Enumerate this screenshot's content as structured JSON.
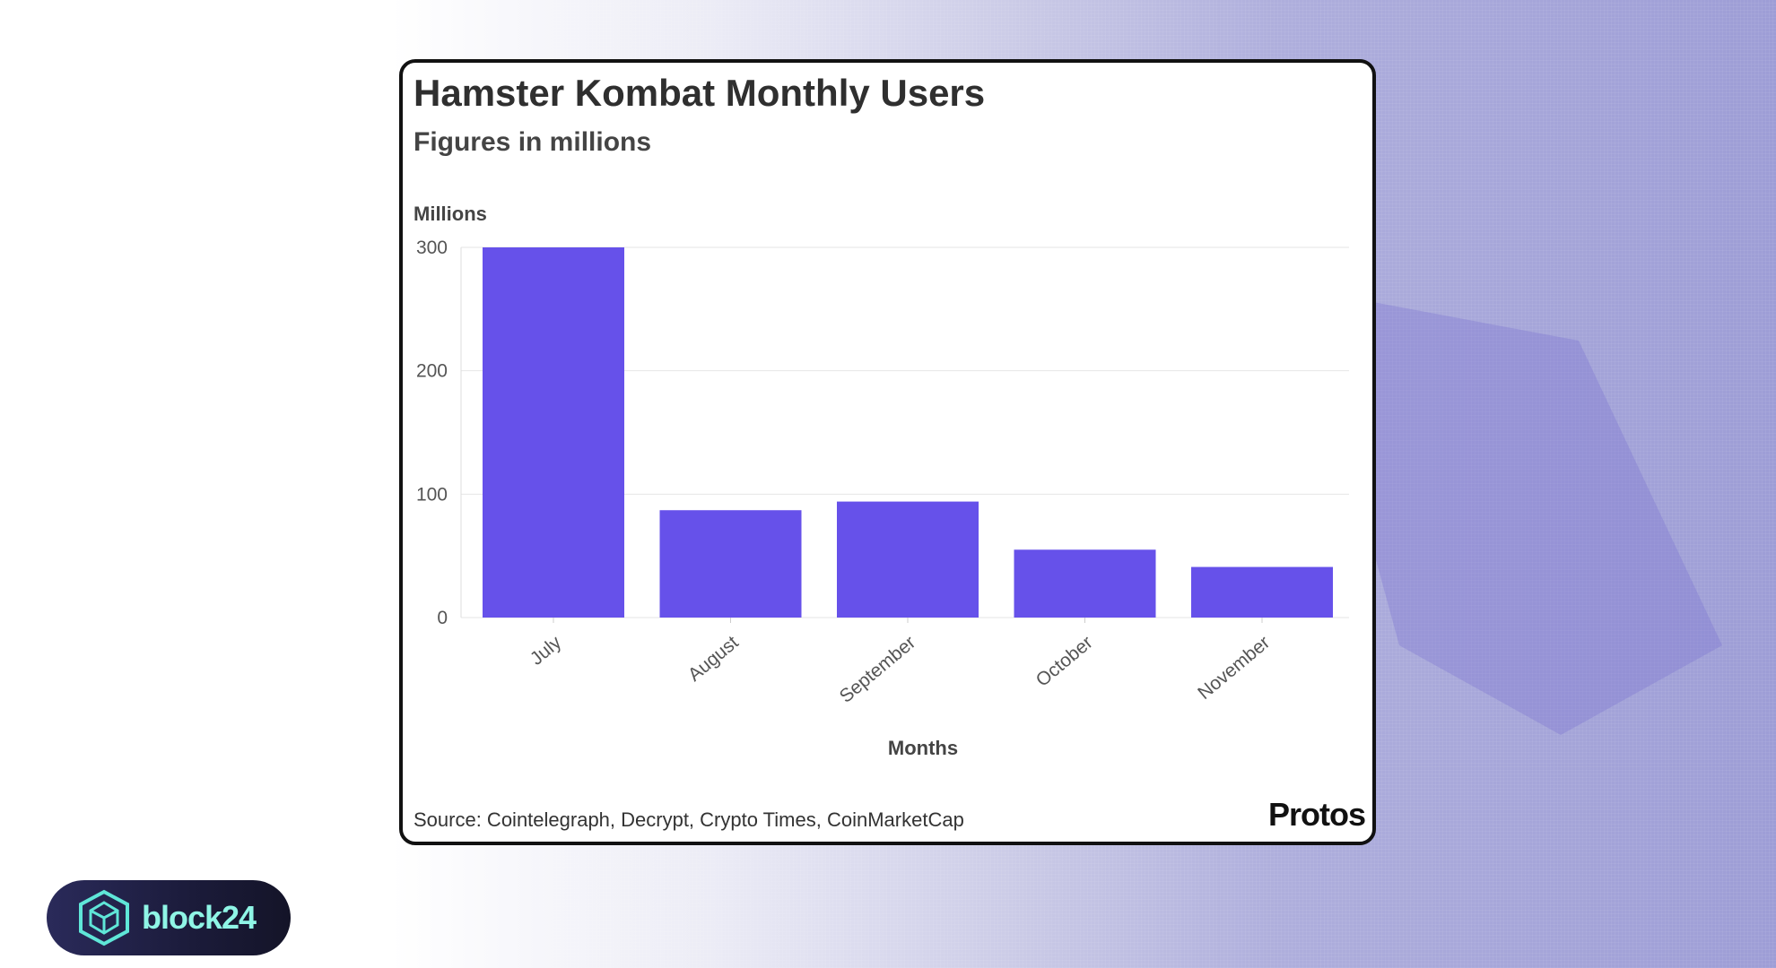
{
  "chart_data": {
    "type": "bar",
    "title": "Hamster Kombat Monthly Users",
    "subtitle": "Figures in millions",
    "xlabel": "Months",
    "ylabel": "Millions",
    "categories": [
      "July",
      "August",
      "September",
      "October",
      "November"
    ],
    "values": [
      300,
      87,
      94,
      55,
      41
    ],
    "ylim": [
      0,
      300
    ],
    "yticks": [
      0,
      100,
      200,
      300
    ],
    "grid": true,
    "bar_color": "#6651ea"
  },
  "source": "Source: Cointelegraph, Decrypt, Crypto Times, CoinMarketCap",
  "brand": "Protos",
  "watermark": {
    "text": "block24",
    "icon": "cube-icon",
    "text_color": "#8ff5e6"
  }
}
